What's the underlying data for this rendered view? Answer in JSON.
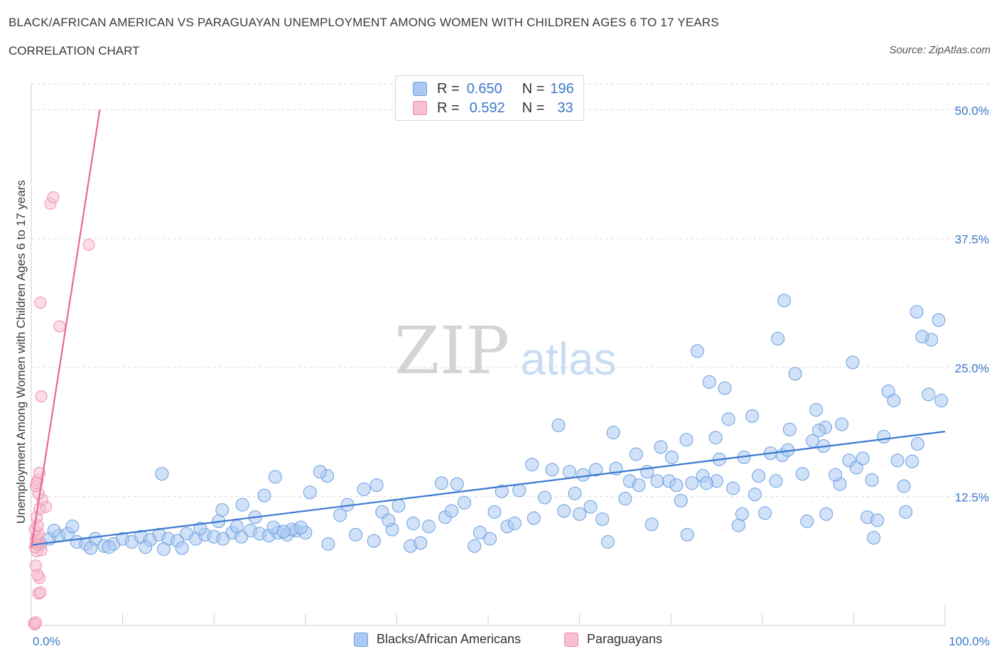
{
  "title": "BLACK/AFRICAN AMERICAN VS PARAGUAYAN UNEMPLOYMENT AMONG WOMEN WITH CHILDREN AGES 6 TO 17 YEARS",
  "subtitle": "CORRELATION CHART",
  "source": "Source: ZipAtlas.com",
  "watermark": {
    "zip": "ZIP",
    "atlas": "atlas"
  },
  "legend": {
    "r_label": "R =",
    "n_label": "N =",
    "blue": {
      "r": "0.650",
      "n": "196"
    },
    "pink": {
      "r": "0.592",
      "n": "33"
    }
  },
  "bottom_legend": {
    "blue": "Blacks/African Americans",
    "pink": "Paraguayans"
  },
  "colors": {
    "blue_fill": "#a9c9f2",
    "blue_stroke": "#6a9fdf",
    "blue_line": "#3b78d0",
    "pink_fill": "#f7bfd0",
    "pink_stroke": "#ee8fae",
    "pink_line": "#e86899",
    "axis_text": "#3b78c8",
    "grid": "#dddddd"
  },
  "chart_data": {
    "type": "scatter",
    "title": "BLACK/AFRICAN AMERICAN VS PARAGUAYAN UNEMPLOYMENT AMONG WOMEN WITH CHILDREN AGES 6 TO 17 YEARS",
    "xlabel": "",
    "ylabel": "Unemployment Among Women with Children Ages 6 to 17 years",
    "xlim": [
      0,
      100
    ],
    "ylim": [
      0,
      52.5
    ],
    "x_tick_labels": [
      "0.0%",
      "100.0%"
    ],
    "y_ticks": [
      12.5,
      25.0,
      37.5,
      50.0
    ],
    "y_tick_labels": [
      "12.5%",
      "25.0%",
      "37.5%",
      "50.0%"
    ],
    "grid": "horizontal dashed",
    "legend_position": "top-center",
    "series": [
      {
        "name": "Blacks/African Americans",
        "r": 0.65,
        "n": 196,
        "trendline": [
          [
            0,
            7.8
          ],
          [
            100,
            18.8
          ]
        ],
        "points": [
          [
            1,
            7.9
          ],
          [
            2,
            8.4
          ],
          [
            3,
            8.7
          ],
          [
            4,
            8.9
          ],
          [
            5,
            8.1
          ],
          [
            6,
            7.9
          ],
          [
            7,
            8.4
          ],
          [
            8,
            7.7
          ],
          [
            9,
            7.9
          ],
          [
            10,
            8.4
          ],
          [
            11,
            8.1
          ],
          [
            12,
            8.6
          ],
          [
            13,
            8.3
          ],
          [
            14,
            8.8
          ],
          [
            15,
            8.4
          ],
          [
            16,
            8.2
          ],
          [
            17,
            8.9
          ],
          [
            18,
            8.4
          ],
          [
            19,
            8.8
          ],
          [
            20,
            8.6
          ],
          [
            21,
            8.4
          ],
          [
            22,
            9.0
          ],
          [
            23,
            8.6
          ],
          [
            24,
            9.2
          ],
          [
            25,
            8.9
          ],
          [
            26,
            8.7
          ],
          [
            27,
            9.0
          ],
          [
            28,
            8.8
          ],
          [
            29,
            9.2
          ],
          [
            30,
            9.0
          ],
          [
            2.5,
            9.2
          ],
          [
            4.5,
            9.6
          ],
          [
            6.5,
            7.5
          ],
          [
            8.5,
            7.6
          ],
          [
            12.5,
            7.6
          ],
          [
            14.5,
            7.4
          ],
          [
            16.5,
            7.5
          ],
          [
            18.5,
            9.4
          ],
          [
            20.5,
            10.1
          ],
          [
            22.5,
            9.6
          ],
          [
            24.5,
            10.5
          ],
          [
            26.5,
            9.5
          ],
          [
            28.5,
            9.3
          ],
          [
            30.5,
            12.9
          ],
          [
            32.5,
            7.9
          ],
          [
            35.5,
            8.8
          ],
          [
            37.5,
            8.2
          ],
          [
            39.5,
            9.3
          ],
          [
            41.5,
            7.7
          ],
          [
            43.5,
            9.6
          ],
          [
            14.3,
            14.7
          ],
          [
            20.9,
            11.2
          ],
          [
            26.7,
            14.4
          ],
          [
            32.4,
            14.5
          ],
          [
            38.4,
            11.0
          ],
          [
            40.2,
            11.6
          ],
          [
            41.8,
            9.9
          ],
          [
            42.6,
            8.0
          ],
          [
            45.3,
            10.5
          ],
          [
            46.0,
            11.1
          ],
          [
            48.5,
            7.7
          ],
          [
            50.2,
            8.4
          ],
          [
            52.1,
            9.6
          ],
          [
            53.4,
            13.1
          ],
          [
            54.8,
            15.6
          ],
          [
            56.2,
            12.4
          ],
          [
            57.0,
            15.1
          ],
          [
            58.3,
            11.1
          ],
          [
            59.5,
            12.8
          ],
          [
            60.4,
            14.6
          ],
          [
            61.2,
            11.5
          ],
          [
            62.5,
            10.3
          ],
          [
            63.1,
            8.1
          ],
          [
            64.0,
            15.2
          ],
          [
            65.5,
            14.0
          ],
          [
            66.2,
            16.6
          ],
          [
            67.4,
            14.9
          ],
          [
            68.9,
            17.3
          ],
          [
            69.8,
            14.0
          ],
          [
            70.6,
            13.6
          ],
          [
            71.1,
            12.1
          ],
          [
            72.3,
            13.8
          ],
          [
            73.5,
            14.5
          ],
          [
            74.9,
            18.2
          ],
          [
            75.3,
            16.1
          ],
          [
            76.8,
            13.3
          ],
          [
            77.4,
            9.7
          ],
          [
            78.9,
            20.3
          ],
          [
            79.6,
            14.5
          ],
          [
            80.9,
            16.7
          ],
          [
            81.5,
            14.0
          ],
          [
            82.2,
            16.5
          ],
          [
            83.0,
            19.0
          ],
          [
            84.4,
            14.7
          ],
          [
            85.5,
            17.9
          ],
          [
            86.7,
            17.4
          ],
          [
            87.0,
            10.8
          ],
          [
            88.5,
            13.7
          ],
          [
            89.5,
            16.0
          ],
          [
            90.3,
            15.3
          ],
          [
            91.5,
            10.5
          ],
          [
            92.0,
            14.1
          ],
          [
            92.6,
            10.2
          ],
          [
            93.8,
            22.7
          ],
          [
            94.8,
            16.0
          ],
          [
            95.5,
            13.5
          ],
          [
            96.4,
            15.9
          ],
          [
            97.0,
            17.6
          ],
          [
            98.2,
            22.4
          ],
          [
            99.6,
            21.8
          ],
          [
            23.1,
            11.7
          ],
          [
            25.5,
            12.6
          ],
          [
            27.6,
            9.1
          ],
          [
            29.5,
            9.5
          ],
          [
            31.6,
            14.9
          ],
          [
            33.8,
            10.7
          ],
          [
            34.6,
            11.7
          ],
          [
            36.4,
            13.2
          ],
          [
            37.8,
            13.6
          ],
          [
            39.1,
            10.2
          ],
          [
            44.9,
            13.8
          ],
          [
            46.6,
            13.7
          ],
          [
            47.4,
            11.9
          ],
          [
            49.1,
            9.0
          ],
          [
            50.7,
            11.0
          ],
          [
            51.5,
            13.0
          ],
          [
            52.9,
            9.9
          ],
          [
            55.0,
            10.4
          ],
          [
            57.7,
            19.4
          ],
          [
            58.9,
            14.9
          ],
          [
            60.0,
            10.8
          ],
          [
            61.8,
            15.1
          ],
          [
            63.7,
            18.7
          ],
          [
            65.0,
            12.3
          ],
          [
            66.5,
            13.6
          ],
          [
            67.9,
            9.8
          ],
          [
            68.5,
            14.0
          ],
          [
            70.1,
            16.3
          ],
          [
            71.7,
            18.0
          ],
          [
            72.9,
            26.6
          ],
          [
            74.2,
            23.6
          ],
          [
            75.9,
            23.0
          ],
          [
            76.3,
            20.0
          ],
          [
            77.8,
            10.8
          ],
          [
            79.2,
            12.7
          ],
          [
            80.3,
            10.9
          ],
          [
            81.7,
            27.8
          ],
          [
            82.4,
            31.5
          ],
          [
            83.6,
            24.4
          ],
          [
            84.9,
            10.1
          ],
          [
            85.9,
            20.9
          ],
          [
            86.9,
            19.2
          ],
          [
            88.0,
            14.6
          ],
          [
            88.7,
            19.5
          ],
          [
            89.9,
            25.5
          ],
          [
            91.0,
            16.2
          ],
          [
            92.2,
            8.5
          ],
          [
            93.3,
            18.3
          ],
          [
            94.4,
            21.8
          ],
          [
            95.7,
            11.0
          ],
          [
            96.9,
            30.4
          ],
          [
            98.5,
            27.7
          ],
          [
            99.3,
            29.6
          ],
          [
            97.5,
            28.0
          ],
          [
            86.2,
            18.9
          ],
          [
            82.8,
            17.0
          ],
          [
            78.0,
            16.3
          ],
          [
            75.0,
            14.0
          ],
          [
            73.9,
            13.8
          ],
          [
            71.8,
            8.8
          ]
        ]
      },
      {
        "name": "Paraguayans",
        "r": 0.592,
        "n": 33,
        "trendline": [
          [
            0,
            7.5
          ],
          [
            7.5,
            50.0
          ]
        ],
        "points": [
          [
            0.3,
            0.2
          ],
          [
            0.4,
            0.1
          ],
          [
            0.5,
            0.3
          ],
          [
            0.8,
            3.1
          ],
          [
            1.0,
            3.2
          ],
          [
            0.9,
            4.6
          ],
          [
            0.7,
            4.9
          ],
          [
            0.5,
            5.8
          ],
          [
            0.6,
            7.2
          ],
          [
            1.1,
            7.3
          ],
          [
            0.4,
            7.6
          ],
          [
            0.7,
            7.9
          ],
          [
            0.9,
            8.1
          ],
          [
            0.5,
            8.3
          ],
          [
            0.6,
            8.6
          ],
          [
            0.8,
            8.9
          ],
          [
            0.4,
            9.3
          ],
          [
            0.7,
            9.7
          ],
          [
            0.6,
            10.5
          ],
          [
            0.9,
            11.3
          ],
          [
            1.6,
            11.5
          ],
          [
            1.2,
            12.2
          ],
          [
            0.8,
            12.8
          ],
          [
            0.5,
            13.5
          ],
          [
            0.7,
            14.1
          ],
          [
            0.9,
            14.8
          ],
          [
            0.6,
            13.8
          ],
          [
            1.1,
            22.2
          ],
          [
            1.0,
            31.3
          ],
          [
            3.1,
            29.0
          ],
          [
            6.3,
            36.9
          ],
          [
            2.1,
            40.9
          ],
          [
            2.4,
            41.5
          ]
        ]
      }
    ]
  }
}
